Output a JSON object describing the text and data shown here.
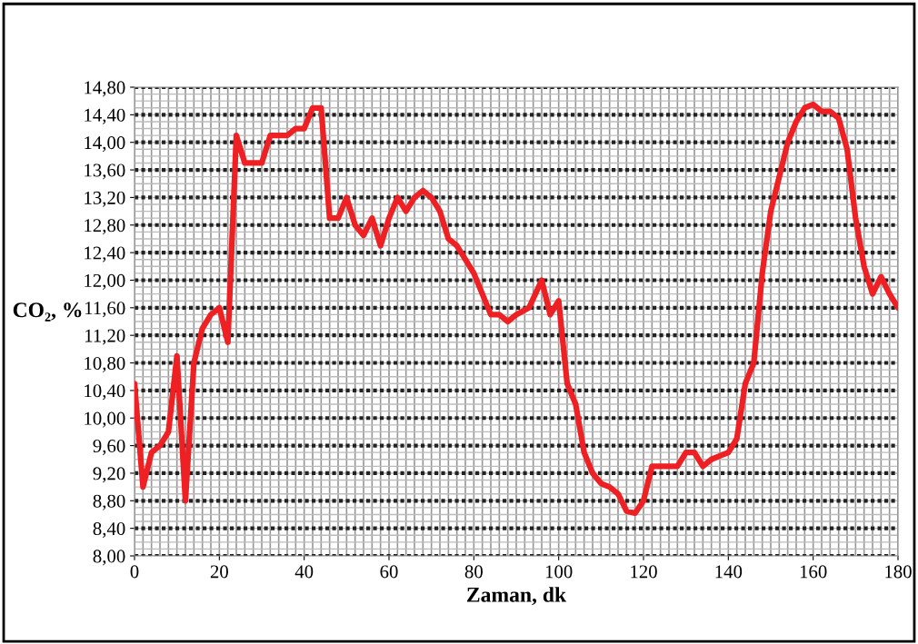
{
  "chart_data": {
    "type": "line",
    "xlabel": "Zaman, dk",
    "ylabel": "CO₂, %",
    "x": [
      0,
      2,
      4,
      6,
      8,
      10,
      12,
      14,
      16,
      18,
      20,
      22,
      24,
      26,
      28,
      30,
      32,
      34,
      36,
      38,
      40,
      42,
      44,
      46,
      48,
      50,
      52,
      54,
      56,
      58,
      60,
      62,
      64,
      66,
      68,
      70,
      72,
      74,
      76,
      78,
      80,
      82,
      84,
      86,
      88,
      90,
      93,
      96,
      98,
      100,
      102,
      104,
      106,
      108,
      110,
      112,
      114,
      116,
      118,
      120,
      122,
      124,
      126,
      128,
      130,
      132,
      134,
      136,
      138,
      140,
      142,
      144,
      146,
      148,
      150,
      152,
      154,
      156,
      158,
      160,
      162,
      164,
      166,
      168,
      170,
      172,
      174,
      176,
      178,
      180
    ],
    "series": [
      {
        "color": "#ee2024",
        "values": [
          10.5,
          9.0,
          9.5,
          9.6,
          9.8,
          10.9,
          8.8,
          10.8,
          11.3,
          11.5,
          11.6,
          11.1,
          14.1,
          13.7,
          13.7,
          13.7,
          14.1,
          14.1,
          14.1,
          14.2,
          14.2,
          14.5,
          14.5,
          12.9,
          12.9,
          13.2,
          12.8,
          12.65,
          12.9,
          12.5,
          12.9,
          13.2,
          13.0,
          13.2,
          13.3,
          13.2,
          13.0,
          12.6,
          12.5,
          12.3,
          12.1,
          11.8,
          11.5,
          11.5,
          11.4,
          11.5,
          11.6,
          12.0,
          11.5,
          11.7,
          10.5,
          10.2,
          9.5,
          9.2,
          9.05,
          9.0,
          8.9,
          8.65,
          8.62,
          8.8,
          9.3,
          9.3,
          9.3,
          9.3,
          9.5,
          9.5,
          9.3,
          9.4,
          9.45,
          9.5,
          9.7,
          10.5,
          10.8,
          12.1,
          13.0,
          13.5,
          14.0,
          14.3,
          14.5,
          14.55,
          14.45,
          14.45,
          14.35,
          13.9,
          12.9,
          12.2,
          11.8,
          12.05,
          11.8,
          11.6
        ]
      }
    ],
    "xlim": [
      0,
      180
    ],
    "xticks": [
      0,
      20,
      40,
      60,
      80,
      100,
      120,
      140,
      160,
      180
    ],
    "ylim": [
      8,
      14.8
    ],
    "yticks": [
      {
        "value": 8,
        "label": "8,00"
      },
      {
        "value": 8.4,
        "label": "8,40"
      },
      {
        "value": 8.8,
        "label": "8,80"
      },
      {
        "value": 9.2,
        "label": "9,20"
      },
      {
        "value": 9.6,
        "label": "9,60"
      },
      {
        "value": 10,
        "label": "10,00"
      },
      {
        "value": 10.4,
        "label": "10,40"
      },
      {
        "value": 10.8,
        "label": "10,80"
      },
      {
        "value": 11.2,
        "label": "11,20"
      },
      {
        "value": 11.6,
        "label": "11,60"
      },
      {
        "value": 12,
        "label": "12,00"
      },
      {
        "value": 12.4,
        "label": "12,40"
      },
      {
        "value": 12.8,
        "label": "12,80"
      },
      {
        "value": 13.2,
        "label": "13,20"
      },
      {
        "value": 13.6,
        "label": "13,60"
      },
      {
        "value": 14,
        "label": "14,00"
      },
      {
        "value": 14.4,
        "label": "14,40"
      },
      {
        "value": 14.8,
        "label": "14,80"
      }
    ],
    "grid": true,
    "marker": "none",
    "line_style": "solid",
    "legend": false
  }
}
